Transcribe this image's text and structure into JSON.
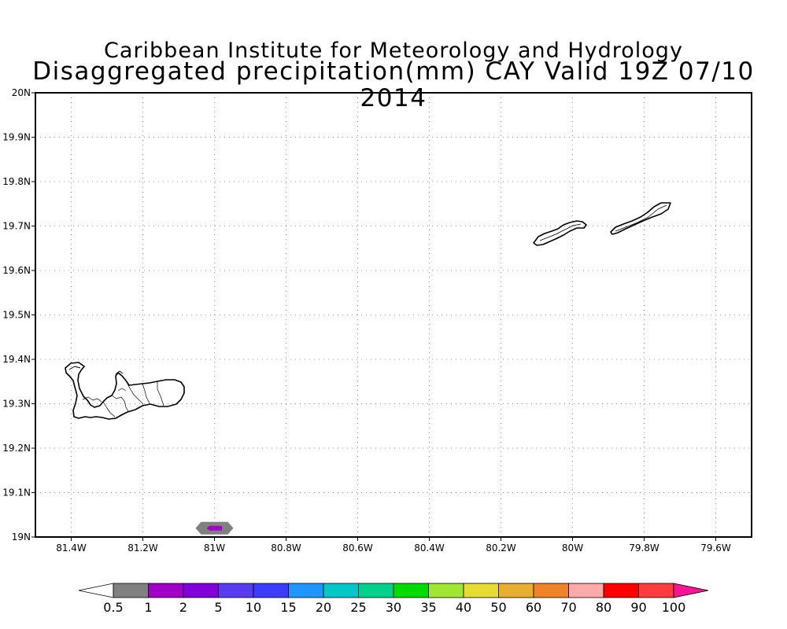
{
  "title": {
    "line1": "Caribbean Institute for Meteorology and Hydrology",
    "line2": "Disaggregated precipitation(mm) CAY Valid 19Z 07/10 2014"
  },
  "map": {
    "lon_range": [
      -81.5,
      -79.5
    ],
    "lat_range": [
      19.0,
      20.0
    ],
    "grid": "dotted",
    "x_ticks": [
      {
        "value": -81.4,
        "label": "81.4W"
      },
      {
        "value": -81.2,
        "label": "81.2W"
      },
      {
        "value": -81.0,
        "label": "81W"
      },
      {
        "value": -80.8,
        "label": "80.8W"
      },
      {
        "value": -80.6,
        "label": "80.6W"
      },
      {
        "value": -80.4,
        "label": "80.4W"
      },
      {
        "value": -80.2,
        "label": "80.2W"
      },
      {
        "value": -80.0,
        "label": "80W"
      },
      {
        "value": -79.8,
        "label": "79.8W"
      },
      {
        "value": -79.6,
        "label": "79.6W"
      }
    ],
    "y_ticks": [
      {
        "value": 19.0,
        "label": "19N"
      },
      {
        "value": 19.1,
        "label": "19.1N"
      },
      {
        "value": 19.2,
        "label": "19.2N"
      },
      {
        "value": 19.3,
        "label": "19.3N"
      },
      {
        "value": 19.4,
        "label": "19.4N"
      },
      {
        "value": 19.5,
        "label": "19.5N"
      },
      {
        "value": 19.6,
        "label": "19.6N"
      },
      {
        "value": 19.7,
        "label": "19.7N"
      },
      {
        "value": 19.8,
        "label": "19.8N"
      },
      {
        "value": 19.9,
        "label": "19.9N"
      },
      {
        "value": 20.0,
        "label": "20N"
      }
    ],
    "precip_cells": [
      {
        "lon": -81.0,
        "lat": 19.02,
        "color": "#808080"
      },
      {
        "lon": -81.0,
        "lat": 19.02,
        "color": "#a000c8"
      }
    ]
  },
  "colorbar": {
    "colors": [
      "#ffffff",
      "#808080",
      "#a000c8",
      "#8200dc",
      "#5a3cf0",
      "#3c3cff",
      "#1e96ff",
      "#00c8c8",
      "#00d28c",
      "#00dc00",
      "#a0e632",
      "#e6dc32",
      "#e6af2d",
      "#f08228",
      "#ffaaaa",
      "#ff0000",
      "#ff3c3c",
      "#ff1493"
    ],
    "labels": [
      "0.5",
      "1",
      "2",
      "5",
      "10",
      "15",
      "20",
      "25",
      "30",
      "35",
      "40",
      "50",
      "60",
      "70",
      "80",
      "90",
      "100"
    ]
  }
}
